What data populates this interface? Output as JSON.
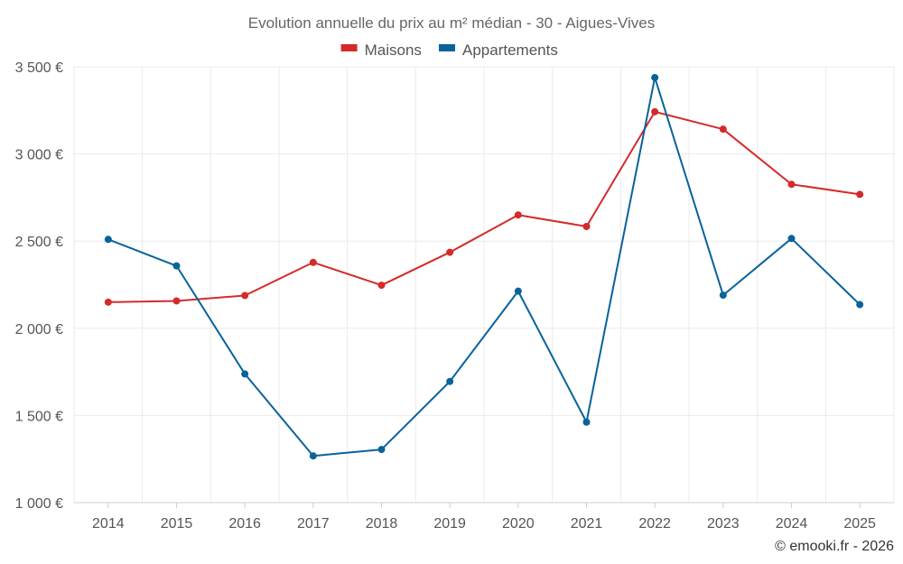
{
  "chart_data": {
    "type": "line",
    "title": "Evolution annuelle du prix au m² médian - 30 - Aigues-Vives",
    "xlabel": "",
    "ylabel": "",
    "ylim": [
      1000,
      3500
    ],
    "yticks": [
      1000,
      1500,
      2000,
      2500,
      3000,
      3500
    ],
    "ytick_labels": [
      "1 000 €",
      "1 500 €",
      "2 000 €",
      "2 500 €",
      "3 000 €",
      "3 500 €"
    ],
    "categories": [
      "2014",
      "2015",
      "2016",
      "2017",
      "2018",
      "2019",
      "2020",
      "2021",
      "2022",
      "2023",
      "2024",
      "2025"
    ],
    "series": [
      {
        "name": "Maisons",
        "color": "#d42a2a",
        "values": [
          2150,
          2157,
          2188,
          2378,
          2247,
          2436,
          2650,
          2584,
          3242,
          3142,
          2826,
          2768
        ]
      },
      {
        "name": "Appartements",
        "color": "#07639a",
        "values": [
          2510,
          2358,
          1738,
          1268,
          1305,
          1695,
          2213,
          1462,
          3438,
          2190,
          2515,
          2136
        ]
      }
    ],
    "legend": "top-center",
    "grid": true,
    "credit": "© emooki.fr - 2026"
  }
}
